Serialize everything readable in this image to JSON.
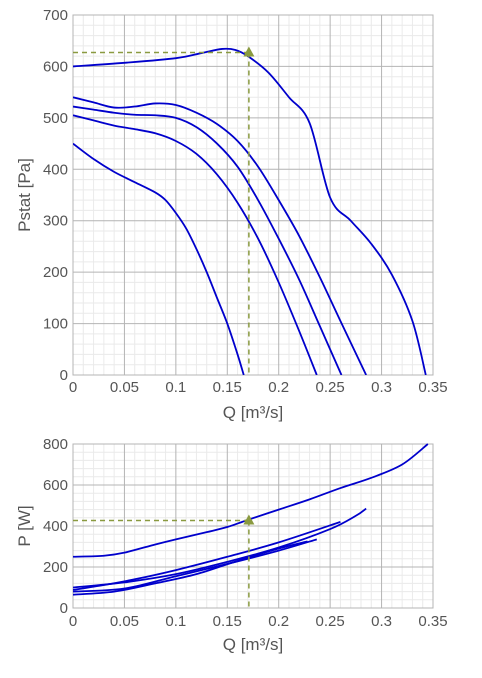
{
  "colors": {
    "curve": "#0000cc",
    "marker": "#8a9a40",
    "grid_major": "#b4b4b4",
    "grid_minor": "#eaeaea",
    "text": "#555555"
  },
  "chart_data": [
    {
      "type": "line",
      "xlabel": "Q [m³/s]",
      "ylabel": "Pstat [Pa]",
      "xlim": [
        0,
        0.35
      ],
      "ylim": [
        0,
        700
      ],
      "x_ticks": [
        "0",
        "0.05",
        "0.1",
        "0.15",
        "0.2",
        "0.25",
        "0.3",
        "0.35"
      ],
      "y_ticks": [
        "0",
        "100",
        "200",
        "300",
        "400",
        "500",
        "600",
        "700"
      ],
      "grid": true,
      "series": [
        {
          "x": [
            0,
            0.05,
            0.1,
            0.125,
            0.145,
            0.158,
            0.17,
            0.19,
            0.21,
            0.23,
            0.25,
            0.27,
            0.29,
            0.31,
            0.33,
            0.343
          ],
          "y": [
            600,
            607,
            616,
            626,
            634,
            632,
            620,
            588,
            540,
            490,
            345,
            300,
            255,
            195,
            105,
            0
          ]
        },
        {
          "x": [
            0,
            0.02,
            0.04,
            0.06,
            0.08,
            0.1,
            0.12,
            0.14,
            0.16,
            0.18,
            0.2,
            0.22,
            0.24,
            0.26,
            0.285
          ],
          "y": [
            540,
            530,
            520,
            522,
            528,
            525,
            510,
            488,
            455,
            405,
            340,
            270,
            190,
            105,
            0
          ]
        },
        {
          "x": [
            0,
            0.02,
            0.04,
            0.06,
            0.08,
            0.1,
            0.12,
            0.14,
            0.16,
            0.18,
            0.2,
            0.22,
            0.24,
            0.261
          ],
          "y": [
            522,
            516,
            510,
            506,
            505,
            500,
            482,
            450,
            405,
            340,
            265,
            185,
            95,
            0
          ]
        },
        {
          "x": [
            0,
            0.02,
            0.04,
            0.06,
            0.08,
            0.1,
            0.12,
            0.14,
            0.16,
            0.18,
            0.2,
            0.22,
            0.237
          ],
          "y": [
            505,
            495,
            485,
            478,
            470,
            455,
            430,
            390,
            335,
            265,
            180,
            85,
            0
          ]
        },
        {
          "x": [
            0,
            0.02,
            0.04,
            0.06,
            0.08,
            0.09,
            0.1,
            0.11,
            0.12,
            0.13,
            0.14,
            0.15,
            0.16,
            0.166
          ],
          "y": [
            450,
            420,
            395,
            375,
            355,
            340,
            315,
            285,
            245,
            200,
            150,
            100,
            40,
            0
          ]
        }
      ],
      "operating_point": {
        "x": 0.171,
        "y": 627
      }
    },
    {
      "type": "line",
      "xlabel": "Q [m³/s]",
      "ylabel": "P [W]",
      "xlim": [
        0,
        0.35
      ],
      "ylim": [
        0,
        800
      ],
      "x_ticks": [
        "0",
        "0.05",
        "0.1",
        "0.15",
        "0.2",
        "0.25",
        "0.3",
        "0.35"
      ],
      "y_ticks": [
        "0",
        "200",
        "400",
        "600",
        "800"
      ],
      "grid": true,
      "series": [
        {
          "x": [
            0,
            0.03,
            0.05,
            0.08,
            0.1,
            0.13,
            0.15,
            0.17,
            0.2,
            0.23,
            0.26,
            0.29,
            0.32,
            0.345
          ],
          "y": [
            250,
            255,
            270,
            310,
            335,
            370,
            395,
            430,
            480,
            530,
            585,
            635,
            700,
            800
          ]
        },
        {
          "x": [
            0,
            0.05,
            0.1,
            0.15,
            0.2,
            0.25,
            0.275,
            0.285
          ],
          "y": [
            100,
            125,
            165,
            225,
            295,
            385,
            450,
            485
          ]
        },
        {
          "x": [
            0,
            0.03,
            0.06,
            0.1,
            0.15,
            0.2,
            0.26
          ],
          "y": [
            88,
            112,
            140,
            185,
            250,
            320,
            420
          ]
        },
        {
          "x": [
            0,
            0.05,
            0.1,
            0.15,
            0.2,
            0.237
          ],
          "y": [
            80,
            95,
            155,
            215,
            280,
            335
          ]
        },
        {
          "x": [
            0,
            0.04,
            0.08,
            0.12,
            0.16,
            0.2,
            0.228
          ],
          "y": [
            65,
            80,
            120,
            165,
            230,
            290,
            325
          ]
        }
      ],
      "operating_point": {
        "x": 0.171,
        "y": 427
      }
    }
  ]
}
